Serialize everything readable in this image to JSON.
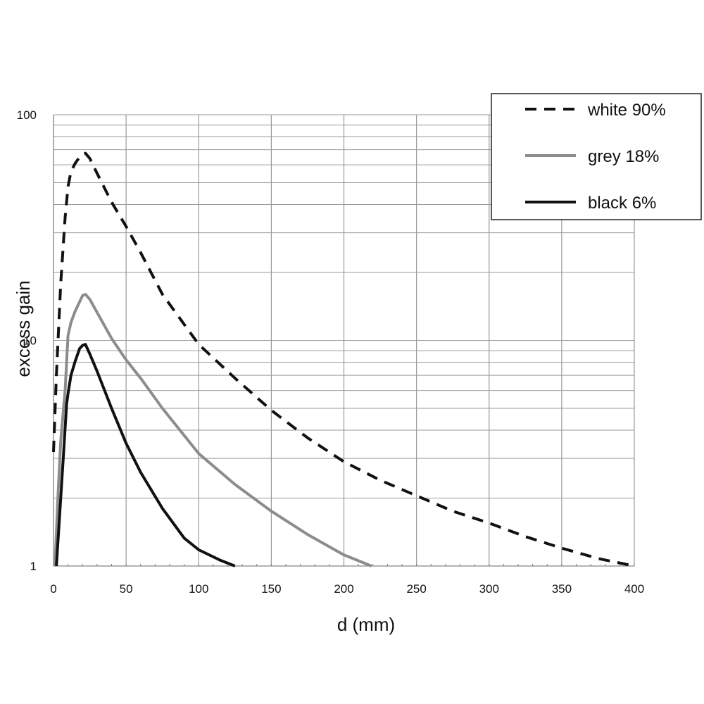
{
  "chart_data": {
    "type": "line",
    "title": "",
    "xlabel": "d (mm)",
    "ylabel": "excess gain",
    "xlim": [
      0,
      400
    ],
    "ylim": [
      1,
      100
    ],
    "yscale": "log",
    "grid": true,
    "legend_position": "top-right",
    "x_ticks": [
      "0",
      "50",
      "100",
      "150",
      "200",
      "250",
      "300",
      "350",
      "400"
    ],
    "y_ticks": [
      "1",
      "10",
      "100"
    ],
    "series": [
      {
        "name": "white 90%",
        "style": "dashed",
        "color": "#111111",
        "x": [
          0,
          2,
          5,
          8,
          10,
          12,
          15,
          18,
          20,
          22,
          25,
          30,
          40,
          50,
          60,
          75,
          100,
          125,
          150,
          175,
          200,
          225,
          250,
          275,
          300,
          325,
          350,
          375,
          400
        ],
        "y": [
          3.2,
          7,
          18,
          35,
          48,
          56,
          61,
          65,
          67,
          67.5,
          64,
          55,
          41,
          32,
          24.5,
          16,
          9.6,
          6.8,
          4.9,
          3.7,
          2.9,
          2.4,
          2.05,
          1.75,
          1.55,
          1.35,
          1.2,
          1.08,
          1.0
        ]
      },
      {
        "name": "grey 18%",
        "style": "solid",
        "color": "#8c8c8c",
        "x": [
          1,
          3,
          5,
          8,
          10,
          12,
          15,
          20,
          22,
          25,
          30,
          40,
          50,
          60,
          75,
          100,
          125,
          150,
          175,
          200,
          219
        ],
        "y": [
          1.0,
          2.0,
          3.6,
          6.0,
          10.5,
          12,
          13.5,
          15.8,
          16,
          15.2,
          13.3,
          10.2,
          8.2,
          6.8,
          5.0,
          3.15,
          2.3,
          1.75,
          1.38,
          1.12,
          1.0
        ]
      },
      {
        "name": "black 6%",
        "style": "solid",
        "color": "#111111",
        "x": [
          2,
          4,
          7,
          9,
          10,
          12,
          15,
          18,
          20,
          22,
          25,
          30,
          40,
          50,
          60,
          75,
          90,
          100,
          115,
          125
        ],
        "y": [
          1.0,
          1.6,
          3.2,
          5.2,
          5.8,
          7.0,
          8.1,
          9.2,
          9.5,
          9.6,
          8.7,
          7.3,
          5.0,
          3.5,
          2.6,
          1.8,
          1.33,
          1.18,
          1.06,
          1.0
        ]
      }
    ]
  }
}
